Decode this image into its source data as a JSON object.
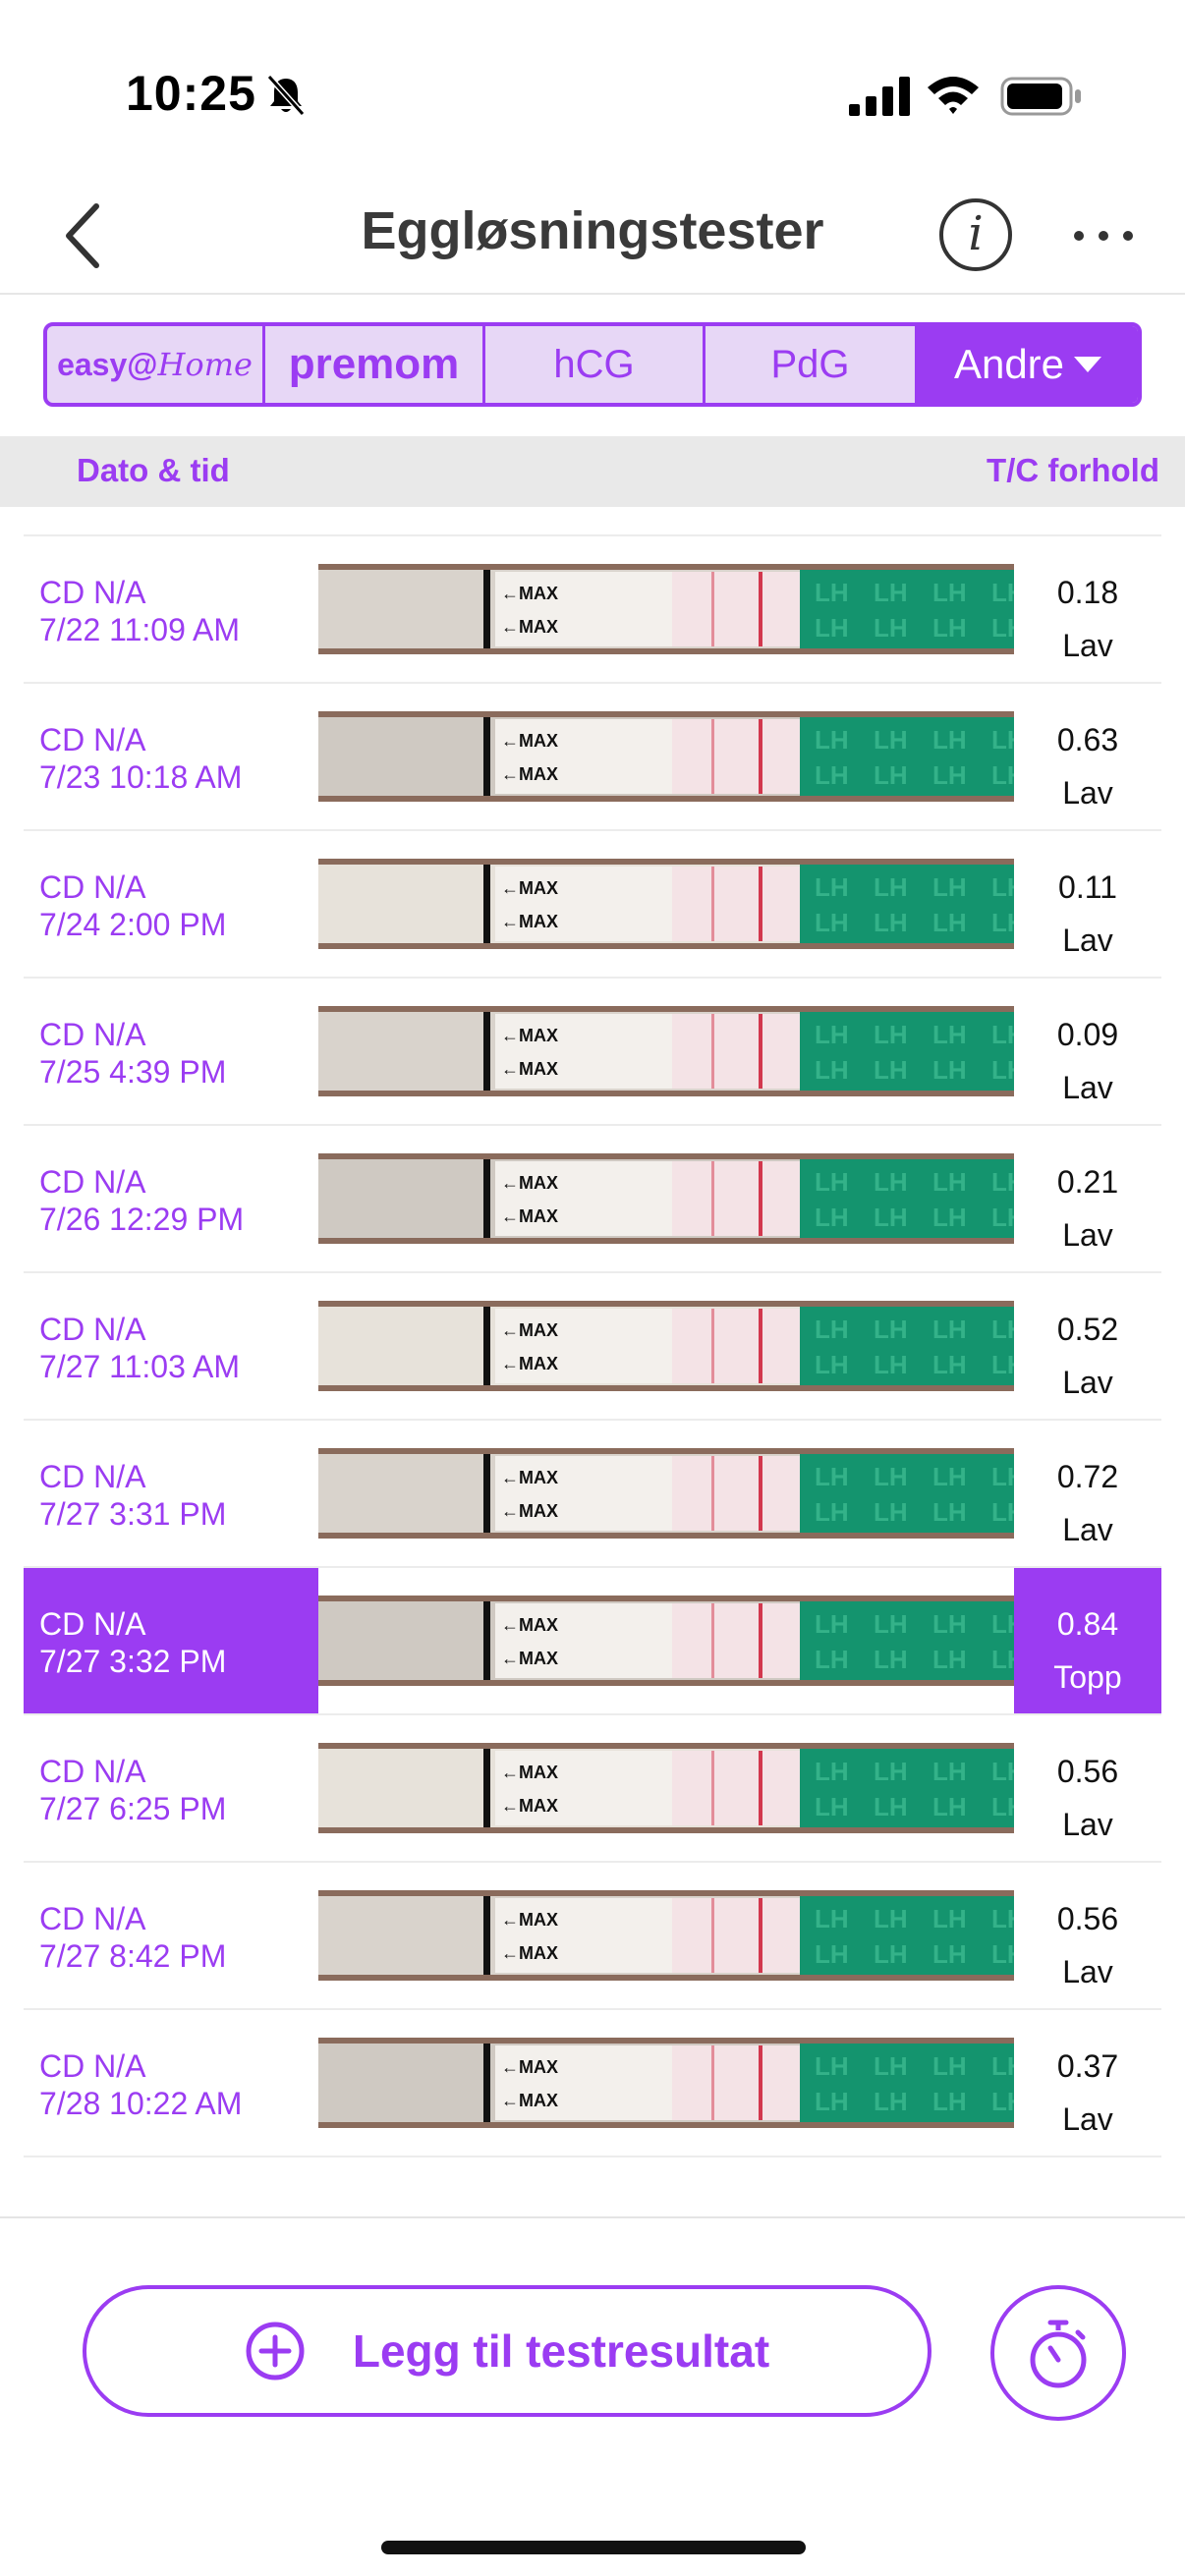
{
  "status_bar": {
    "time": "10:25"
  },
  "nav": {
    "title": "Eggløsningstester"
  },
  "brand_tabs": {
    "easy_prefix": "easy@",
    "easy_suffix": "Home",
    "premom": "premom",
    "hcg": "hCG",
    "pdg": "PdG",
    "andre": "Andre"
  },
  "columns": {
    "date": "Dato & tid",
    "ratio": "T/C forhold"
  },
  "tests": [
    {
      "cd": "CD N/A",
      "datetime": "7/22 11:09 AM",
      "ratio": "0.18",
      "level": "Lav",
      "selected": false
    },
    {
      "cd": "CD N/A",
      "datetime": "7/23 10:18 AM",
      "ratio": "0.63",
      "level": "Lav",
      "selected": false
    },
    {
      "cd": "CD N/A",
      "datetime": "7/24 2:00 PM",
      "ratio": "0.11",
      "level": "Lav",
      "selected": false
    },
    {
      "cd": "CD N/A",
      "datetime": "7/25 4:39 PM",
      "ratio": "0.09",
      "level": "Lav",
      "selected": false
    },
    {
      "cd": "CD N/A",
      "datetime": "7/26 12:29 PM",
      "ratio": "0.21",
      "level": "Lav",
      "selected": false
    },
    {
      "cd": "CD N/A",
      "datetime": "7/27 11:03 AM",
      "ratio": "0.52",
      "level": "Lav",
      "selected": false
    },
    {
      "cd": "CD N/A",
      "datetime": "7/27 3:31 PM",
      "ratio": "0.72",
      "level": "Lav",
      "selected": false
    },
    {
      "cd": "CD N/A",
      "datetime": "7/27 3:32 PM",
      "ratio": "0.84",
      "level": "Topp",
      "selected": true
    },
    {
      "cd": "CD N/A",
      "datetime": "7/27 6:25 PM",
      "ratio": "0.56",
      "level": "Lav",
      "selected": false
    },
    {
      "cd": "CD N/A",
      "datetime": "7/27 8:42 PM",
      "ratio": "0.56",
      "level": "Lav",
      "selected": false
    },
    {
      "cd": "CD N/A",
      "datetime": "7/28 10:22 AM",
      "ratio": "0.37",
      "level": "Lav",
      "selected": false
    }
  ],
  "strip": {
    "max_label": "←MAX",
    "lh_label": "LH"
  },
  "actions": {
    "add_result": "Legg til testresultat"
  },
  "colors": {
    "accent": "#9b3cf2",
    "strip_green": "#14946e",
    "line_red": "#d2384e"
  },
  "icons": {
    "back": "chevron-left-icon",
    "info": "info-icon",
    "more": "more-horizontal-icon",
    "add": "plus-circle-icon",
    "timer": "stopwatch-icon"
  }
}
